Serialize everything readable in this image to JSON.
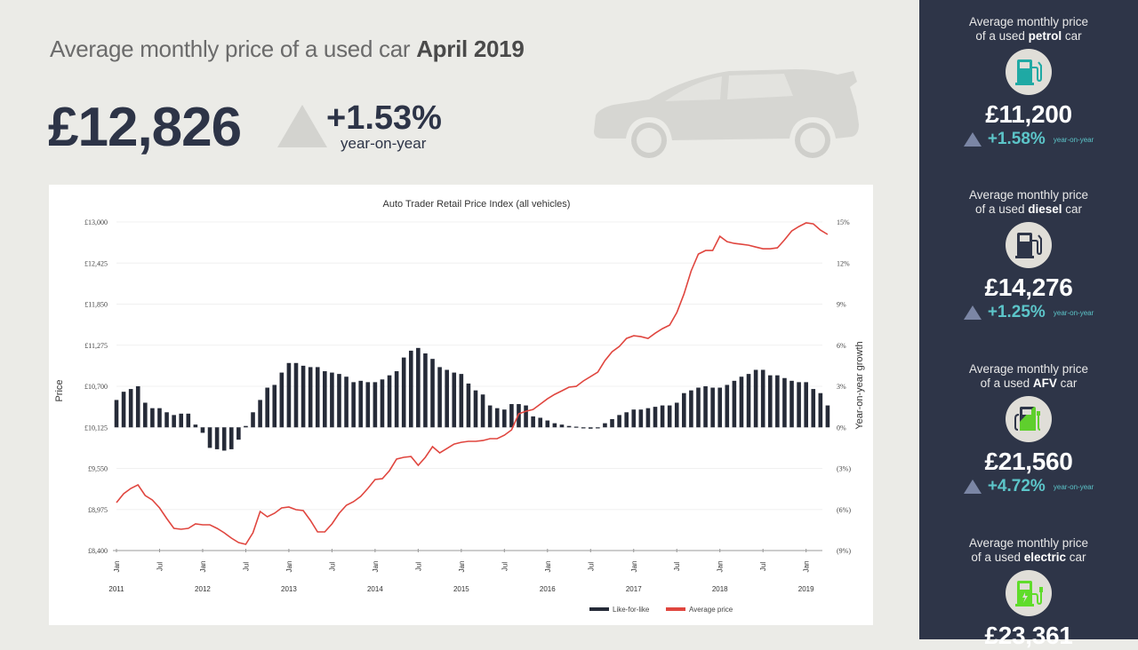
{
  "header": {
    "title_prefix": "Average monthly price of a used car",
    "title_period": "April 2019",
    "price": "£12,826",
    "change": "+1.53%",
    "change_label": "year-on-year",
    "change_direction": "up"
  },
  "sidebar": {
    "cards": [
      {
        "label_prefix": "Average monthly price",
        "label_line2_prefix": "of a used",
        "fuel": "petrol",
        "label_suffix": "car",
        "icon": "petrol-pump-icon",
        "icon_color": "#1fa9a4",
        "price": "£11,200",
        "change": "+1.58%",
        "change_label": "year-on-year"
      },
      {
        "label_prefix": "Average monthly price",
        "label_line2_prefix": "of a used",
        "fuel": "diesel",
        "label_suffix": "car",
        "icon": "diesel-pump-icon",
        "icon_color": "#2e3548",
        "price": "£14,276",
        "change": "+1.25%",
        "change_label": "year-on-year"
      },
      {
        "label_prefix": "Average monthly price",
        "label_line2_prefix": "of a used",
        "fuel": "AFV",
        "label_suffix": "car",
        "icon": "hybrid-pump-icon",
        "icon_color": "#5fcf2d",
        "price": "£21,560",
        "change": "+4.72%",
        "change_label": "year-on-year"
      },
      {
        "label_prefix": "Average monthly price",
        "label_line2_prefix": "of a used",
        "fuel": "electric",
        "label_suffix": "car",
        "icon": "electric-charger-icon",
        "icon_color": "#5fdc2a",
        "price": "£23,361",
        "change": "",
        "change_label": ""
      }
    ]
  },
  "colors": {
    "bars": "#262b38",
    "line": "#e0463f",
    "sidebar_bg": "#2e3548",
    "accent_teal": "#5cc5c9",
    "price_text": "#2d3447"
  },
  "chart_data": {
    "type": "bar+line",
    "title": "Auto Trader Retail Price Index (all vehicles)",
    "ylabel": "Price",
    "y2label": "Year-on-year growth",
    "xlabel": "",
    "ylim": [
      8400,
      13000
    ],
    "y2lim": [
      -9,
      15
    ],
    "yticks": [
      "£13,000",
      "£12,425",
      "£11,850",
      "£11,275",
      "£10,700",
      "£10,125",
      "£9,550",
      "£8,975",
      "£8,400"
    ],
    "y2ticks": [
      "15%",
      "12%",
      "9%",
      "6%",
      "3%",
      "0%",
      "(3%)",
      "(6%)",
      "(9%)"
    ],
    "x_month_ticks": [
      "Jan",
      "Jul",
      "Jan",
      "Jul",
      "Jan",
      "Jul",
      "Jan",
      "Jul",
      "Jan",
      "Jul",
      "Jan",
      "Jul",
      "Jan",
      "Jul",
      "Jan",
      "Jul",
      "Jan"
    ],
    "x_year_labels": [
      "2011",
      "2012",
      "2013",
      "2014",
      "2015",
      "2016",
      "2017",
      "2018",
      "2019"
    ],
    "start": "2011-01",
    "end": "2019-04",
    "grid": true,
    "legend": "bottom-center",
    "series": [
      {
        "name": "Like-for-like",
        "type": "bar",
        "axis": "right",
        "unit": "%",
        "values": [
          2.0,
          2.6,
          2.8,
          3.0,
          1.8,
          1.4,
          1.4,
          1.1,
          0.9,
          1.0,
          1.0,
          0.2,
          -0.4,
          -1.5,
          -1.6,
          -1.7,
          -1.6,
          -0.9,
          0.1,
          1.1,
          2.0,
          2.9,
          3.1,
          4.0,
          4.7,
          4.7,
          4.5,
          4.4,
          4.4,
          4.1,
          4.0,
          3.9,
          3.7,
          3.3,
          3.4,
          3.3,
          3.3,
          3.5,
          3.8,
          4.1,
          5.1,
          5.6,
          5.8,
          5.4,
          5.0,
          4.4,
          4.2,
          4.0,
          3.9,
          3.2,
          2.7,
          2.4,
          1.6,
          1.4,
          1.3,
          1.7,
          1.7,
          1.6,
          0.8,
          0.7,
          0.5,
          0.3,
          0.2,
          0.1,
          0.05,
          -0.05,
          -0.1,
          0.0,
          0.3,
          0.6,
          0.9,
          1.1,
          1.3,
          1.3,
          1.4,
          1.5,
          1.6,
          1.6,
          1.8,
          2.5,
          2.7,
          2.9,
          3.0,
          2.9,
          2.9,
          3.1,
          3.4,
          3.7,
          3.9,
          4.2,
          4.2,
          3.8,
          3.8,
          3.6,
          3.4,
          3.3,
          3.3,
          2.8,
          2.5,
          1.6
        ]
      },
      {
        "name": "Average price",
        "type": "line",
        "axis": "left",
        "unit": "£",
        "values": [
          9071,
          9196,
          9270,
          9320,
          9171,
          9108,
          8997,
          8847,
          8711,
          8698,
          8711,
          8773,
          8760,
          8760,
          8711,
          8649,
          8574,
          8512,
          8487,
          8649,
          8947,
          8872,
          8922,
          8997,
          9009,
          8972,
          8959,
          8822,
          8661,
          8661,
          8773,
          8922,
          9034,
          9084,
          9158,
          9270,
          9394,
          9406,
          9518,
          9680,
          9705,
          9717,
          9593,
          9705,
          9854,
          9767,
          9829,
          9891,
          9916,
          9929,
          9929,
          9941,
          9966,
          9966,
          10015,
          10090,
          10314,
          10351,
          10376,
          10450,
          10525,
          10587,
          10637,
          10687,
          10699,
          10774,
          10836,
          10898,
          11059,
          11184,
          11258,
          11370,
          11407,
          11395,
          11370,
          11444,
          11507,
          11556,
          11730,
          11991,
          12315,
          12551,
          12601,
          12601,
          12800,
          12725,
          12700,
          12688,
          12675,
          12650,
          12625,
          12625,
          12638,
          12750,
          12874,
          12937,
          12987,
          12974,
          12887,
          12826
        ]
      }
    ],
    "legend_entries": [
      "Like-for-like",
      "Average price"
    ]
  }
}
